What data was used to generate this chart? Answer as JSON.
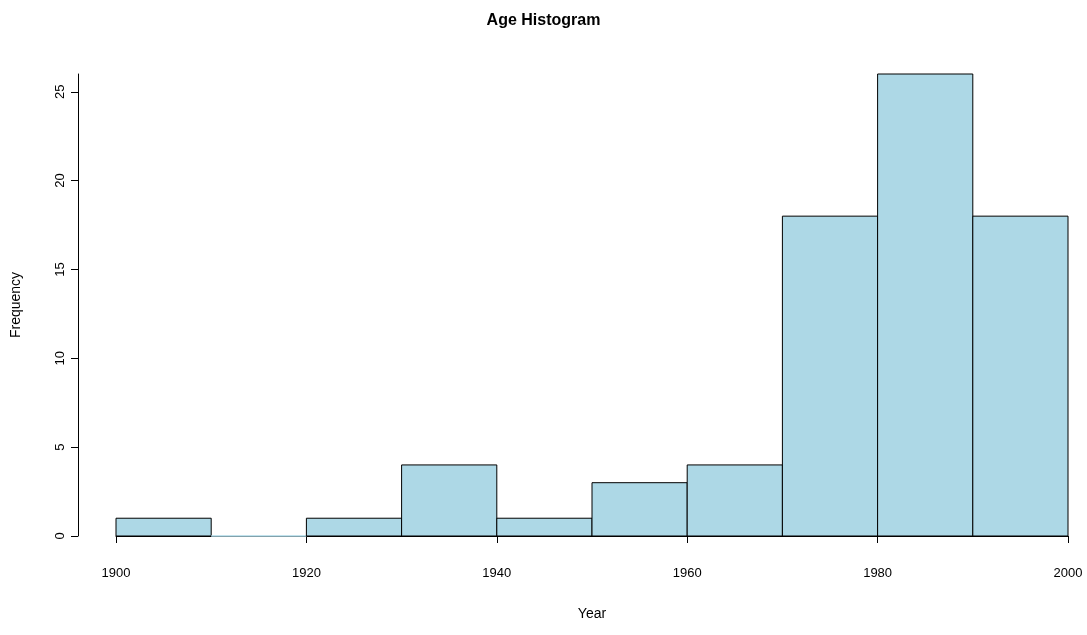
{
  "chart_data": {
    "type": "histogram",
    "title": "Age Histogram",
    "xlabel": "Year",
    "ylabel": "Frequency",
    "bins": [
      1900,
      1910,
      1920,
      1930,
      1940,
      1950,
      1960,
      1970,
      1980,
      1990,
      2000
    ],
    "values": [
      1,
      0,
      1,
      4,
      1,
      3,
      4,
      18,
      26,
      18
    ],
    "color": "#add8e6",
    "xlim": [
      1900,
      2000
    ],
    "xticks": [
      1900,
      1920,
      1940,
      1960,
      1980,
      2000
    ],
    "ylim": [
      0,
      26
    ],
    "yticks": [
      0,
      5,
      10,
      15,
      20,
      25
    ],
    "grid": false
  }
}
